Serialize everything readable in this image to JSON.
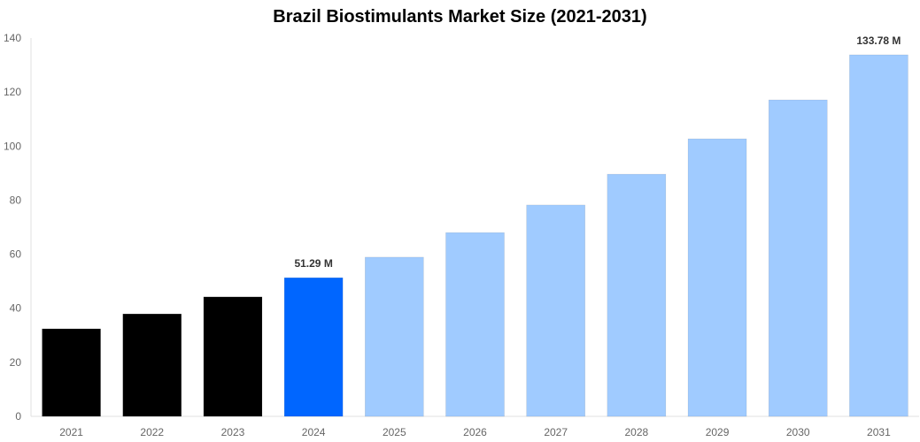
{
  "chart_data": {
    "type": "bar",
    "title": "Brazil Biostimulants Market Size (2021-2031)",
    "xlabel": "",
    "ylabel": "",
    "ylim": [
      0,
      140
    ],
    "yticks": [
      0,
      20,
      40,
      60,
      80,
      100,
      120,
      140
    ],
    "grid": false,
    "categories": [
      "2021",
      "2022",
      "2023",
      "2024",
      "2025",
      "2026",
      "2027",
      "2028",
      "2029",
      "2030",
      "2031"
    ],
    "values": [
      32.4,
      37.9,
      44.2,
      51.29,
      58.9,
      68.0,
      78.2,
      89.6,
      102.7,
      117.1,
      133.78
    ],
    "colors": [
      "#000000",
      "#000000",
      "#000000",
      "#0066ff",
      "#a0cbff",
      "#a0cbff",
      "#a0cbff",
      "#a0cbff",
      "#a0cbff",
      "#a0cbff",
      "#a0cbff"
    ],
    "data_labels": [
      {
        "category": "2024",
        "text": "51.29 M"
      },
      {
        "category": "2031",
        "text": "133.78 M"
      }
    ]
  }
}
